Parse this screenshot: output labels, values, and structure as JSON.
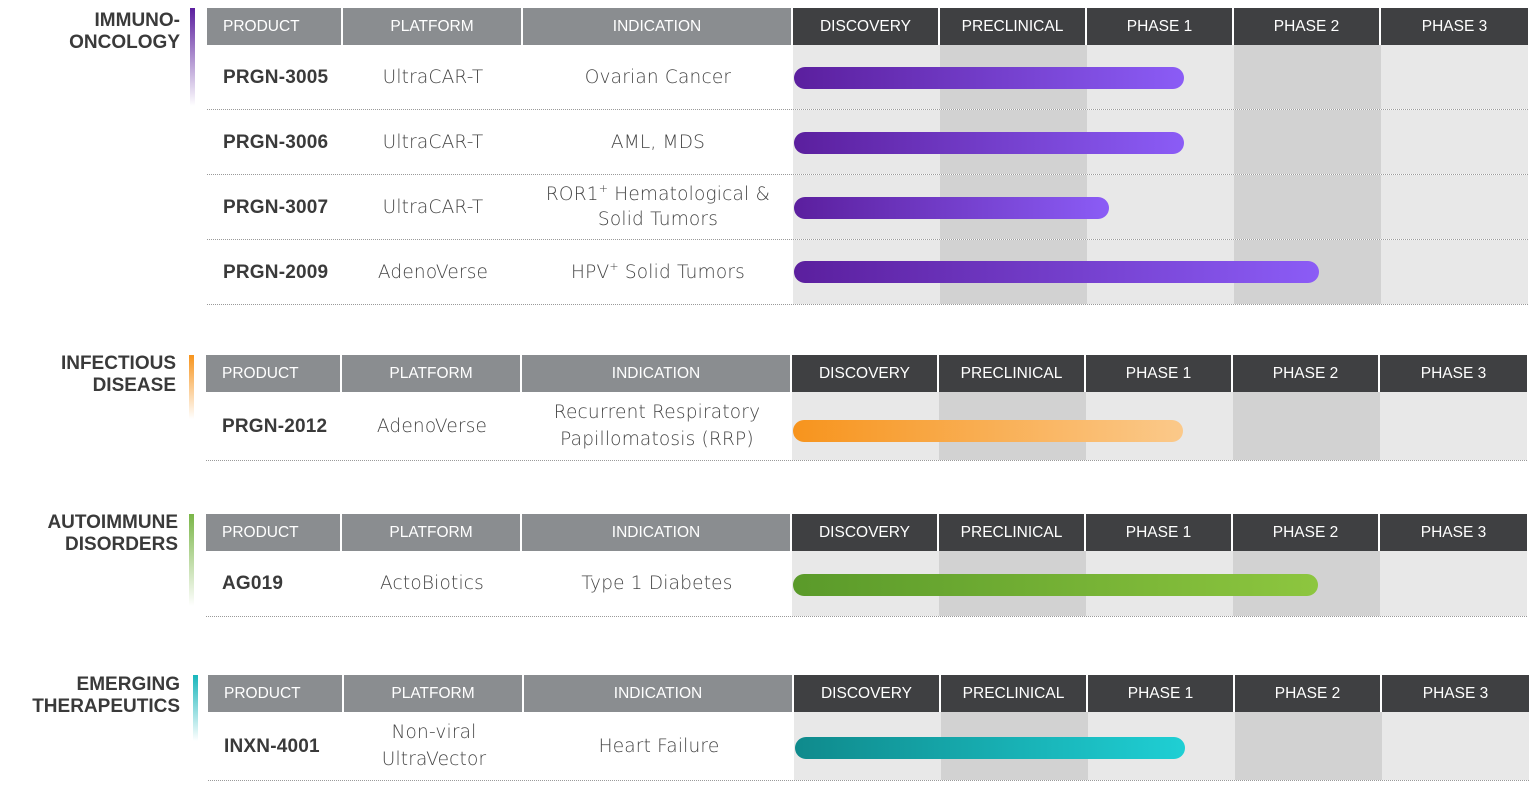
{
  "colors": {
    "immuno": [
      "#5b1f9e",
      "#8b5cf6"
    ],
    "infectious": [
      "#f7941d",
      "#fbc98a"
    ],
    "autoimmune": [
      "#5a9a2a",
      "#8dc63f"
    ],
    "emerging": [
      "#0f8a8c",
      "#1fcfd4"
    ]
  },
  "headers": {
    "product": "PRODUCT",
    "platform": "PLATFORM",
    "indication": "INDICATION",
    "phases": [
      "DISCOVERY",
      "PRECLINICAL",
      "PHASE 1",
      "PHASE 2",
      "PHASE 3"
    ]
  },
  "sections": [
    {
      "category": "IMMUNO-\nONCOLOGY",
      "rows": [
        {
          "product": "PRGN-3005",
          "platform": "UltraCAR-T",
          "indication": "Ovarian Cancer",
          "progress": 0.265
        },
        {
          "product": "PRGN-3006",
          "platform": "UltraCAR-T",
          "indication": "AML, MDS",
          "progress": 0.265
        },
        {
          "product": "PRGN-3007",
          "platform": "UltraCAR-T",
          "indication_main": "ROR1",
          "indication_sup": "+",
          "indication_rest": " Hematological &\nSolid Tumors",
          "progress": 0.214
        },
        {
          "product": "PRGN-2009",
          "platform": "AdenoVerse",
          "indication_main": "HPV",
          "indication_sup": "+",
          "indication_rest": " Solid Tumors",
          "progress": 0.357
        }
      ]
    },
    {
      "category": "INFECTIOUS\nDISEASE",
      "rows": [
        {
          "product": "PRGN-2012",
          "platform": "AdenoVerse",
          "indication": "Recurrent Respiratory\nPapillomatosis (RRP)",
          "progress": 0.265
        }
      ]
    },
    {
      "category": "AUTOIMMUNE\nDISORDERS",
      "rows": [
        {
          "product": "AG019",
          "platform": "ActoBiotics",
          "indication": "Type 1 Diabetes",
          "progress": 0.357
        }
      ]
    },
    {
      "category": "EMERGING\nTHERAPEUTICS",
      "rows": [
        {
          "product": "INXN-4001",
          "platform": "Non-viral\nUltraVector",
          "indication": "Heart Failure",
          "progress": 0.265
        }
      ]
    }
  ]
}
